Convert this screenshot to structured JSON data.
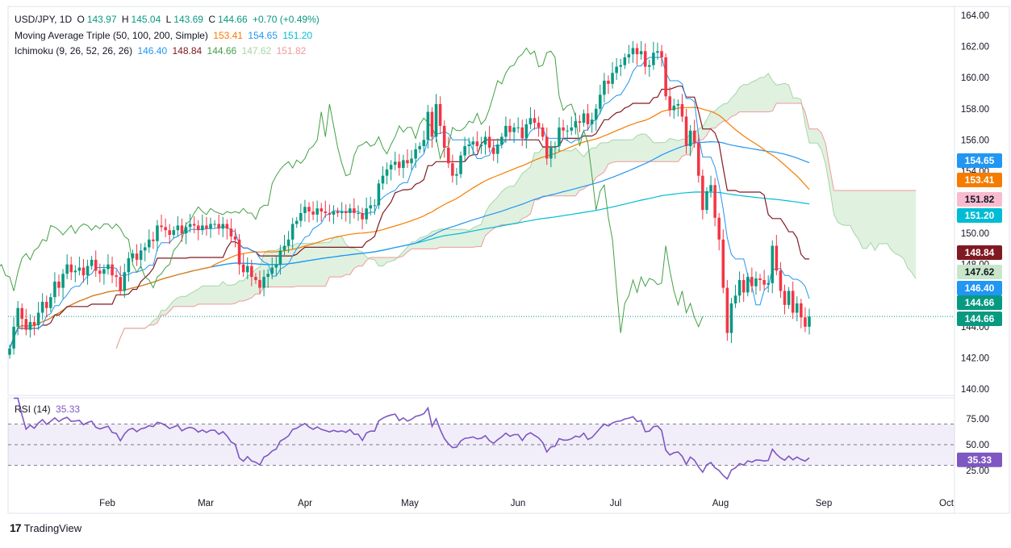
{
  "legend": {
    "line1": {
      "title": "USD/JPY, 1D",
      "open_label": "O",
      "open": "143.97",
      "high_label": "H",
      "high": "145.04",
      "low_label": "L",
      "low": "143.69",
      "close_label": "C",
      "close": "144.66",
      "change": "+0.70 (+0.49%)"
    },
    "line2": {
      "title": "Moving Average Triple (50, 100, 200, Simple)",
      "v1": "153.41",
      "v2": "154.65",
      "v3": "151.20"
    },
    "line3": {
      "title": "Ichimoku (9, 26, 52, 26, 26)",
      "v1": "146.40",
      "v2": "148.84",
      "v3": "144.66",
      "v4": "147.62",
      "v5": "151.82"
    },
    "rsi_title": "RSI (14)",
    "rsi_value": "35.33"
  },
  "colors": {
    "up": "#089981",
    "down": "#f23645",
    "ma50": "#f57c00",
    "ma100": "#2196f3",
    "ma200": "#00bcd4",
    "tenkan": "#2196f3",
    "kijun": "#801922",
    "chikou": "#43a047",
    "spanA": "#a5d6a7",
    "spanB": "#ef9a9a",
    "rsi": "#7e57c2"
  },
  "price_tags": [
    {
      "value": "154.65",
      "color": "#2196f3"
    },
    {
      "value": "153.41",
      "color": "#f57c00"
    },
    {
      "value": "151.82",
      "color": "#f8bbd0"
    },
    {
      "value": "151.20",
      "color": "#00bcd4"
    },
    {
      "value": "148.84",
      "color": "#801922"
    },
    {
      "value": "147.62",
      "color": "#c8e6c9"
    },
    {
      "value": "146.40",
      "color": "#2196f3"
    },
    {
      "value": "144.66",
      "color": "#089981"
    },
    {
      "value": "144.66",
      "color": "#089981"
    }
  ],
  "rsi_tag": {
    "value": "35.33",
    "color": "#7e57c2"
  },
  "brand": "TradingView",
  "chart_data": {
    "type": "candlestick",
    "symbol": "USD/JPY",
    "timeframe": "1D",
    "y_ticks": [
      140.0,
      142.0,
      144.0,
      146.0,
      148.0,
      150.0,
      152.0,
      154.0,
      156.0,
      158.0,
      160.0,
      162.0,
      164.0
    ],
    "ylim": [
      140,
      164
    ],
    "x_ticks": [
      "Feb",
      "Mar",
      "Apr",
      "May",
      "Jun",
      "Jul",
      "Aug",
      "Sep",
      "Oct"
    ],
    "closes": [
      142.6,
      144.0,
      145.2,
      144.5,
      143.8,
      144.3,
      144.1,
      144.9,
      145.6,
      145.2,
      145.9,
      146.9,
      146.5,
      147.4,
      148.0,
      147.5,
      147.6,
      147.8,
      147.3,
      147.9,
      148.3,
      147.6,
      147.4,
      147.7,
      148.0,
      147.3,
      147.2,
      146.3,
      147.5,
      148.4,
      148.7,
      148.3,
      148.9,
      149.1,
      149.6,
      149.5,
      150.5,
      150.4,
      150.2,
      149.9,
      150.2,
      150.5,
      150.0,
      150.4,
      150.6,
      150.5,
      150.2,
      150.5,
      150.3,
      150.6,
      150.6,
      150.3,
      150.6,
      150.3,
      149.8,
      149.6,
      148.0,
      147.5,
      147.9,
      147.2,
      147.0,
      146.5,
      147.2,
      147.4,
      147.8,
      148.0,
      148.9,
      149.2,
      149.6,
      150.6,
      150.8,
      151.3,
      151.7,
      151.4,
      151.2,
      151.6,
      151.4,
      151.3,
      151.2,
      151.4,
      151.3,
      151.4,
      151.3,
      151.6,
      151.3,
      151.3,
      150.9,
      151.6,
      151.8,
      151.8,
      153.2,
      153.7,
      154.1,
      154.4,
      154.6,
      154.2,
      154.7,
      154.5,
      154.8,
      155.4,
      155.6,
      156.0,
      157.8,
      156.2,
      158.3,
      156.9,
      155.5,
      154.5,
      153.7,
      153.8,
      155.0,
      155.6,
      155.7,
      155.9,
      155.6,
      155.7,
      156.2,
      155.5,
      155.1,
      155.7,
      156.2,
      156.9,
      156.5,
      156.8,
      156.8,
      156.1,
      157.0,
      157.4,
      157.1,
      156.8,
      156.2,
      154.8,
      155.5,
      155.6,
      156.8,
      156.6,
      156.6,
      156.8,
      157.2,
      157.1,
      157.7,
      157.0,
      157.3,
      158.0,
      158.9,
      159.8,
      159.6,
      160.3,
      160.7,
      160.8,
      161.3,
      161.5,
      161.9,
      161.5,
      161.7,
      160.7,
      160.8,
      161.6,
      161.7,
      161.3,
      158.8,
      157.9,
      158.2,
      158.3,
      157.5,
      155.6,
      156.6,
      155.8,
      153.7,
      151.5,
      152.7,
      153.1,
      151.0,
      149.6,
      146.5,
      143.6,
      145.5,
      146.0,
      147.0,
      146.2,
      147.2,
      146.6,
      147.1,
      147.0,
      146.7,
      146.8,
      149.2,
      147.6,
      146.3,
      145.4,
      146.3,
      144.9,
      145.5,
      144.6,
      144.0,
      144.66
    ],
    "ma50_last": 153.41,
    "ma100_last": 154.65,
    "ma200_last": 151.2,
    "tenkan_last": 146.4,
    "kijun_last": 148.84,
    "chikou_last": 144.66,
    "spanA_last": 147.62,
    "spanB_last": 151.82,
    "rsi": {
      "levels": [
        25,
        50,
        75
      ],
      "upper_band": 70,
      "lower_band": 30,
      "last": 35.33
    }
  }
}
